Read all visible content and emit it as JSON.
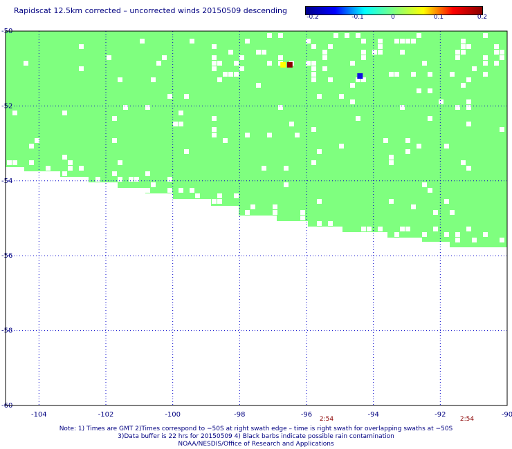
{
  "title": "Rapidscat 12.5km corrected – uncorrected winds 20150509 descending",
  "colorbar": {
    "labels": [
      "-0.2",
      "-0.1",
      "0",
      "0.1",
      "0.2"
    ],
    "stops": [
      "#00008b",
      "#0000ff",
      "#00ffff",
      "#7fff7f",
      "#ffff00",
      "#ff0000",
      "#8b0000"
    ]
  },
  "map": {
    "x_ticks": [
      "-104",
      "-102",
      "-100",
      "-98",
      "-96",
      "-94",
      "-92",
      "-90"
    ],
    "y_ticks": [
      "-50",
      "-52",
      "-54",
      "-56",
      "-58",
      "-60"
    ],
    "lon_range": [
      -105,
      -90
    ],
    "lat_range": [
      -60,
      -50
    ],
    "grid": "dotted",
    "fill_color": "#7fff7f",
    "time_labels": [
      {
        "text": "2:54",
        "lon": -95.4
      },
      {
        "text": "2:54",
        "lon": -91.2
      }
    ],
    "highlight_cells": [
      {
        "lon": -96.7,
        "lat": -50.9,
        "color": "#ffff00"
      },
      {
        "lon": -96.5,
        "lat": -50.9,
        "color": "#8b0000"
      },
      {
        "lon": -94.4,
        "lat": -51.2,
        "color": "#1010e0"
      }
    ]
  },
  "notes": {
    "line1": "Note: 1) Times are GMT 2)Times correspond to −50S at right swath edge – time is right swath for overlapping swaths at −50S",
    "line2": "3)Data buffer is 22 hrs for 20150509 4) Black barbs indicate possible rain contamination",
    "line3": "NOAA/NESDIS/Office of Research and Applications"
  }
}
